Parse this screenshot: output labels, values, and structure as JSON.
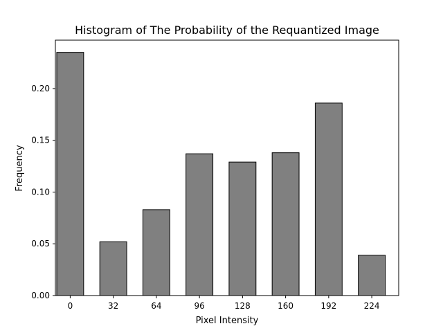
{
  "chart_data": {
    "type": "bar",
    "title": "Histogram of The Probability of the Requantized Image",
    "xlabel": "Pixel Intensity",
    "ylabel": "Frequency",
    "categories": [
      "0",
      "32",
      "64",
      "96",
      "128",
      "160",
      "192",
      "224"
    ],
    "x": [
      0,
      32,
      64,
      96,
      128,
      160,
      192,
      224
    ],
    "values": [
      0.235,
      0.052,
      0.083,
      0.137,
      0.129,
      0.138,
      0.186,
      0.039
    ],
    "xlim": [
      -11,
      244
    ],
    "ylim": [
      0,
      0.2468
    ],
    "yticks": [
      0.0,
      0.05,
      0.1,
      0.15,
      0.2
    ],
    "ytick_labels": [
      "0.00",
      "0.05",
      "0.10",
      "0.15",
      "0.20"
    ],
    "bar_width_units": 20,
    "grid": false,
    "legend": "none",
    "colors": {
      "bar_fill": "#808080",
      "bar_edge": "#000000",
      "axes": "#000000",
      "background": "#ffffff"
    }
  }
}
